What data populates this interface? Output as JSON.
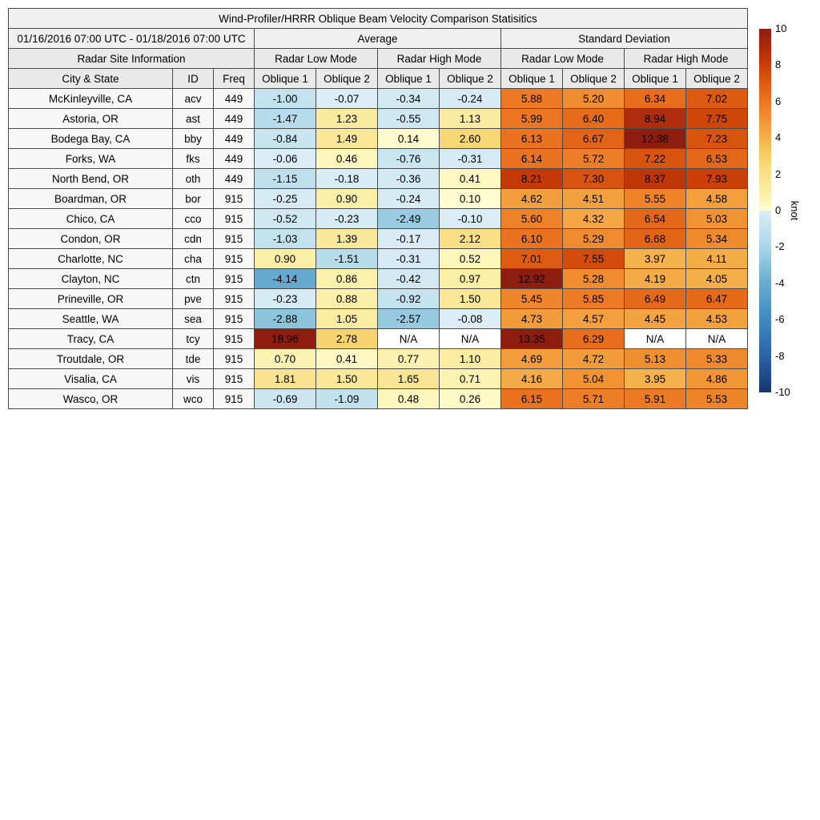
{
  "chart_data": {
    "type": "table",
    "title": "Wind-Profiler/HRRR Oblique Beam Velocity Comparison Statisitics",
    "date_range": "01/16/2016 07:00 UTC - 01/18/2016 07:00 UTC",
    "group_headers": [
      "Average",
      "Standard Deviation"
    ],
    "site_info_header": "Radar Site Information",
    "mode_headers": [
      "Radar Low Mode",
      "Radar High Mode",
      "Radar Low Mode",
      "Radar High Mode"
    ],
    "column_headers": [
      "City & State",
      "ID",
      "Freq",
      "Oblique 1",
      "Oblique 2",
      "Oblique 1",
      "Oblique 2",
      "Oblique 1",
      "Oblique 2",
      "Oblique 1",
      "Oblique 2"
    ],
    "rows": [
      {
        "city": "McKinleyville, CA",
        "id": "acv",
        "freq": "449",
        "values": [
          "-1.00",
          "-0.07",
          "-0.34",
          "-0.24",
          "5.88",
          "5.20",
          "6.34",
          "7.02"
        ]
      },
      {
        "city": "Astoria, OR",
        "id": "ast",
        "freq": "449",
        "values": [
          "-1.47",
          "1.23",
          "-0.55",
          "1.13",
          "5.99",
          "6.40",
          "8.94",
          "7.75"
        ]
      },
      {
        "city": "Bodega Bay, CA",
        "id": "bby",
        "freq": "449",
        "values": [
          "-0.84",
          "1.49",
          "0.14",
          "2.60",
          "6.13",
          "6.67",
          "12.38",
          "7.23"
        ]
      },
      {
        "city": "Forks, WA",
        "id": "fks",
        "freq": "449",
        "values": [
          "-0.06",
          "0.46",
          "-0.76",
          "-0.31",
          "6.14",
          "5.72",
          "7.22",
          "6.53"
        ]
      },
      {
        "city": "North Bend, OR",
        "id": "oth",
        "freq": "449",
        "values": [
          "-1.15",
          "-0.18",
          "-0.36",
          "0.41",
          "8.21",
          "7.30",
          "8.37",
          "7.93"
        ]
      },
      {
        "city": "Boardman, OR",
        "id": "bor",
        "freq": "915",
        "values": [
          "-0.25",
          "0.90",
          "-0.24",
          "0.10",
          "4.62",
          "4.51",
          "5.55",
          "4.58"
        ]
      },
      {
        "city": "Chico, CA",
        "id": "cco",
        "freq": "915",
        "values": [
          "-0.52",
          "-0.23",
          "-2.49",
          "-0.10",
          "5.60",
          "4.32",
          "6.54",
          "5.03"
        ]
      },
      {
        "city": "Condon, OR",
        "id": "cdn",
        "freq": "915",
        "values": [
          "-1.03",
          "1.39",
          "-0.17",
          "2.12",
          "6.10",
          "5.29",
          "6.68",
          "5.34"
        ]
      },
      {
        "city": "Charlotte, NC",
        "id": "cha",
        "freq": "915",
        "values": [
          "0.90",
          "-1.51",
          "-0.31",
          "0.52",
          "7.01",
          "7.55",
          "3.97",
          "4.11"
        ]
      },
      {
        "city": "Clayton, NC",
        "id": "ctn",
        "freq": "915",
        "values": [
          "-4.14",
          "0.86",
          "-0.42",
          "0.97",
          "12.92",
          "5.28",
          "4.19",
          "4.05"
        ]
      },
      {
        "city": "Prineville, OR",
        "id": "pve",
        "freq": "915",
        "values": [
          "-0.23",
          "0.88",
          "-0.92",
          "1.50",
          "5.45",
          "5.85",
          "6.49",
          "6.47"
        ]
      },
      {
        "city": "Seattle, WA",
        "id": "sea",
        "freq": "915",
        "values": [
          "-2.88",
          "1.05",
          "-2.57",
          "-0.08",
          "4.73",
          "4.57",
          "4.45",
          "4.53"
        ]
      },
      {
        "city": "Tracy, CA",
        "id": "tcy",
        "freq": "915",
        "values": [
          "18.96",
          "2.78",
          "N/A",
          "N/A",
          "13.35",
          "6.29",
          "N/A",
          "N/A"
        ]
      },
      {
        "city": "Troutdale, OR",
        "id": "tde",
        "freq": "915",
        "values": [
          "0.70",
          "0.41",
          "0.77",
          "1.10",
          "4.69",
          "4.72",
          "5.13",
          "5.33"
        ]
      },
      {
        "city": "Visalia, CA",
        "id": "vis",
        "freq": "915",
        "values": [
          "1.81",
          "1.50",
          "1.65",
          "0.71",
          "4.16",
          "5.04",
          "3.95",
          "4.86"
        ]
      },
      {
        "city": "Wasco, OR",
        "id": "wco",
        "freq": "915",
        "values": [
          "-0.69",
          "-1.09",
          "0.48",
          "0.26",
          "6.15",
          "5.71",
          "5.91",
          "5.53"
        ]
      }
    ],
    "colorbar": {
      "label": "knot",
      "min": -10,
      "max": 10,
      "ticks": [
        10,
        8,
        6,
        4,
        2,
        0,
        -2,
        -4,
        -6,
        -8,
        -10
      ]
    },
    "colormap": {
      "positive_stops": [
        [
          0,
          "#ffffd5"
        ],
        [
          1,
          "#fbeda3"
        ],
        [
          2,
          "#f8e08b"
        ],
        [
          3,
          "#f6cf65"
        ],
        [
          4,
          "#f5b04b"
        ],
        [
          5,
          "#f19334"
        ],
        [
          6,
          "#ec7622"
        ],
        [
          7,
          "#dd5c11"
        ],
        [
          8,
          "#ca3e06"
        ],
        [
          9,
          "#ad2b0c"
        ],
        [
          10,
          "#8e1d10"
        ]
      ],
      "negative_stops": [
        [
          -10,
          "#16356e"
        ],
        [
          -9,
          "#204c8b"
        ],
        [
          -8,
          "#2a62a7"
        ],
        [
          -7,
          "#3576b3"
        ],
        [
          -6,
          "#4189c0"
        ],
        [
          -5,
          "#549ac8"
        ],
        [
          -4,
          "#68abd0"
        ],
        [
          -3,
          "#88c1db"
        ],
        [
          -2,
          "#a9d6e7"
        ],
        [
          -1,
          "#c3e2ee"
        ],
        [
          0,
          "#ddeef6"
        ]
      ],
      "na_color": "#ffffff"
    }
  },
  "theme": {
    "header_bg_light": "#f0f0f0",
    "header_bg": "#e9e9e9",
    "row_label_bg": "#f7f7f7",
    "border_color": "#4a4a4a"
  }
}
